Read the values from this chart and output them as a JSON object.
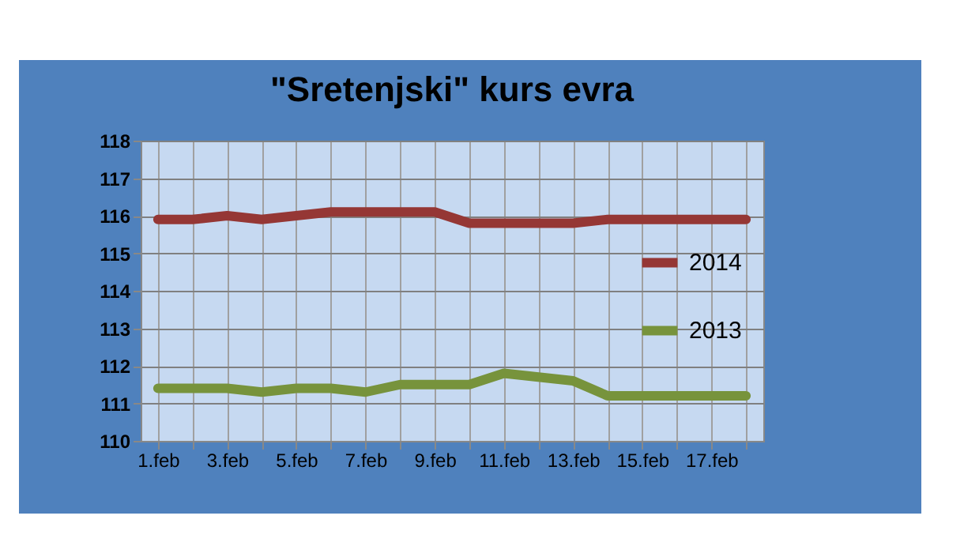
{
  "chart_data": {
    "type": "line",
    "title": "\"Sretenjski\" kurs evra",
    "categories": [
      "1.feb",
      null,
      "3.feb",
      null,
      "5.feb",
      null,
      "7.feb",
      null,
      "9.feb",
      null,
      "11.feb",
      null,
      "13.feb",
      null,
      "15.feb",
      null,
      "17.feb",
      null
    ],
    "series": [
      {
        "name": "2014",
        "color": "#953735",
        "values": [
          115.9,
          115.9,
          116.0,
          115.9,
          116.0,
          116.1,
          116.1,
          116.1,
          116.1,
          115.8,
          115.8,
          115.8,
          115.8,
          115.9,
          115.9,
          115.9,
          115.9,
          115.9
        ]
      },
      {
        "name": "2013",
        "color": "#77933c",
        "values": [
          111.4,
          111.4,
          111.4,
          111.3,
          111.4,
          111.4,
          111.3,
          111.5,
          111.5,
          111.5,
          111.8,
          111.7,
          111.6,
          111.2,
          111.2,
          111.2,
          111.2,
          111.2
        ]
      }
    ],
    "ylim": [
      110,
      118
    ],
    "yticks": [
      110,
      111,
      112,
      113,
      114,
      115,
      116,
      117,
      118
    ],
    "grid": true,
    "legend": "right",
    "marker": "none",
    "line_style": "solid"
  }
}
